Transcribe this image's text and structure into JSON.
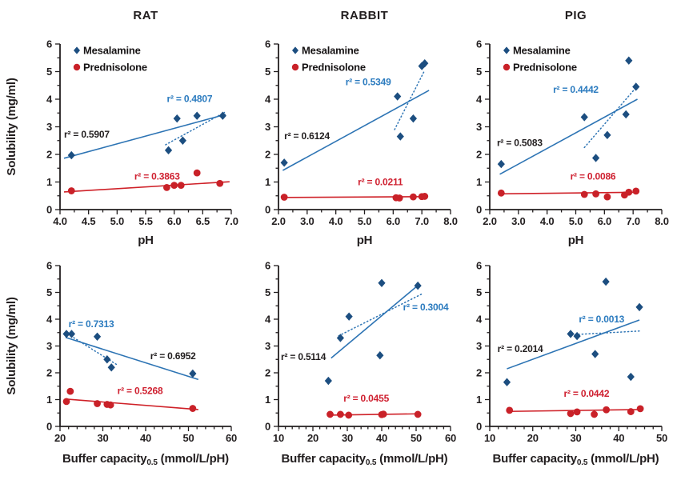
{
  "figure": {
    "ylabel": "Solubility (mg/ml)",
    "legend": [
      {
        "key": "mesalamine",
        "label": "Mesalamine"
      },
      {
        "key": "prednisolone",
        "label": "Prednisolone"
      }
    ]
  },
  "colors": {
    "blue_marker": "#1c4e80",
    "blue_line": "#2d74b4",
    "blue_text": "#2b7bbf",
    "red_marker": "#c92128",
    "red_line": "#cf2128",
    "red_text": "#cf2030",
    "dark": "#221e1f",
    "axis": "#221e1f"
  },
  "chart_data": [
    {
      "id": "rat-ph",
      "type": "scatter",
      "row": 0,
      "col": 0,
      "title": "RAT",
      "xlabel": {
        "pre": "pH",
        "sub": "",
        "post": ""
      },
      "xlim": [
        4.0,
        7.0
      ],
      "xmajor": 0.5,
      "xminor": 0.25,
      "xdecimals": 1,
      "ylim": [
        0,
        6
      ],
      "ymajor": 1,
      "yminor": 0.5,
      "show_ylabel": true,
      "show_legend": true,
      "mesalamine": [
        [
          4.2,
          1.97
        ],
        [
          5.9,
          2.15
        ],
        [
          6.05,
          3.3
        ],
        [
          6.15,
          2.5
        ],
        [
          6.4,
          3.4
        ],
        [
          6.85,
          3.4
        ]
      ],
      "prednisolone": [
        [
          4.2,
          0.68
        ],
        [
          5.87,
          0.8
        ],
        [
          6.0,
          0.88
        ],
        [
          6.12,
          0.88
        ],
        [
          6.4,
          1.33
        ],
        [
          6.8,
          0.95
        ]
      ],
      "lines": [
        {
          "series": "mesalamine",
          "style": "solid",
          "x1": 4.07,
          "y1": 1.86,
          "x2": 6.9,
          "y2": 3.45
        },
        {
          "series": "mesalamine",
          "style": "dotted",
          "x1": 5.85,
          "y1": 2.35,
          "x2": 6.88,
          "y2": 3.52
        },
        {
          "series": "prednisolone",
          "style": "solid",
          "x1": 4.07,
          "y1": 0.64,
          "x2": 6.97,
          "y2": 1.01
        }
      ],
      "annotations": [
        {
          "text": "r² = 0.5907",
          "color": "dark",
          "x": 4.07,
          "y": 2.72,
          "anchor": "start"
        },
        {
          "text": "r² = 0.4807",
          "color": "blue",
          "x": 6.27,
          "y": 4.02,
          "anchor": "middle"
        },
        {
          "text": "r² = 0.3863",
          "color": "red",
          "x": 5.7,
          "y": 1.2,
          "anchor": "middle"
        }
      ]
    },
    {
      "id": "rabbit-ph",
      "type": "scatter",
      "row": 0,
      "col": 1,
      "title": "RABBIT",
      "xlabel": {
        "pre": "pH",
        "sub": "",
        "post": ""
      },
      "xlim": [
        2.0,
        8.0
      ],
      "xmajor": 1.0,
      "xminor": 0.5,
      "xdecimals": 1,
      "ylim": [
        0,
        6
      ],
      "ymajor": 1,
      "yminor": 0.5,
      "show_ylabel": false,
      "show_legend": true,
      "mesalamine": [
        [
          2.2,
          1.7
        ],
        [
          6.15,
          4.1
        ],
        [
          6.25,
          2.65
        ],
        [
          6.7,
          3.3
        ],
        [
          7.0,
          5.2
        ],
        [
          7.1,
          5.3
        ]
      ],
      "prednisolone": [
        [
          2.2,
          0.45
        ],
        [
          6.1,
          0.43
        ],
        [
          6.22,
          0.42
        ],
        [
          6.7,
          0.46
        ],
        [
          7.0,
          0.47
        ],
        [
          7.1,
          0.48
        ]
      ],
      "lines": [
        {
          "series": "mesalamine",
          "style": "solid",
          "x1": 2.15,
          "y1": 1.42,
          "x2": 7.25,
          "y2": 4.32
        },
        {
          "series": "mesalamine",
          "style": "dotted",
          "x1": 6.05,
          "y1": 2.9,
          "x2": 7.1,
          "y2": 5.05
        },
        {
          "series": "prednisolone",
          "style": "solid",
          "x1": 2.2,
          "y1": 0.44,
          "x2": 7.2,
          "y2": 0.47
        }
      ],
      "annotations": [
        {
          "text": "r² = 0.6124",
          "color": "dark",
          "x": 2.2,
          "y": 2.67,
          "anchor": "start"
        },
        {
          "text": "r² = 0.5349",
          "color": "blue",
          "x": 5.13,
          "y": 4.62,
          "anchor": "middle"
        },
        {
          "text": "r² = 0.0211",
          "color": "red",
          "x": 5.55,
          "y": 1.0,
          "anchor": "middle"
        }
      ]
    },
    {
      "id": "pig-ph",
      "type": "scatter",
      "row": 0,
      "col": 2,
      "title": "PIG",
      "xlabel": {
        "pre": "pH",
        "sub": "",
        "post": ""
      },
      "xlim": [
        2.0,
        8.0
      ],
      "xmajor": 1.0,
      "xminor": 0.5,
      "xdecimals": 1,
      "ylim": [
        0,
        6
      ],
      "ymajor": 1,
      "yminor": 0.5,
      "show_ylabel": false,
      "show_legend": true,
      "mesalamine": [
        [
          2.4,
          1.65
        ],
        [
          5.3,
          3.35
        ],
        [
          5.7,
          1.87
        ],
        [
          6.1,
          2.7
        ],
        [
          6.75,
          3.45
        ],
        [
          6.85,
          5.4
        ],
        [
          7.1,
          4.45
        ]
      ],
      "prednisolone": [
        [
          2.4,
          0.6
        ],
        [
          5.3,
          0.55
        ],
        [
          5.7,
          0.57
        ],
        [
          6.1,
          0.46
        ],
        [
          6.7,
          0.53
        ],
        [
          6.85,
          0.63
        ],
        [
          7.1,
          0.67
        ]
      ],
      "lines": [
        {
          "series": "mesalamine",
          "style": "solid",
          "x1": 2.35,
          "y1": 1.28,
          "x2": 7.15,
          "y2": 4.0
        },
        {
          "series": "mesalamine",
          "style": "dotted",
          "x1": 5.3,
          "y1": 2.25,
          "x2": 7.1,
          "y2": 4.42
        },
        {
          "series": "prednisolone",
          "style": "solid",
          "x1": 2.4,
          "y1": 0.57,
          "x2": 7.2,
          "y2": 0.63
        }
      ],
      "annotations": [
        {
          "text": "r² = 0.5083",
          "color": "dark",
          "x": 2.25,
          "y": 2.42,
          "anchor": "start"
        },
        {
          "text": "r² = 0.4442",
          "color": "blue",
          "x": 5.0,
          "y": 4.35,
          "anchor": "middle"
        },
        {
          "text": "r² = 0.0086",
          "color": "red",
          "x": 5.6,
          "y": 1.2,
          "anchor": "middle"
        }
      ]
    },
    {
      "id": "rat-bc",
      "type": "scatter",
      "row": 1,
      "col": 0,
      "title": null,
      "xlabel": {
        "pre": "Buffer capacity",
        "sub": "0.5",
        "post": " (mmol/L/pH)"
      },
      "xlim": [
        20,
        60
      ],
      "xmajor": 10,
      "xminor": 2,
      "xdecimals": 0,
      "ylim": [
        0,
        6
      ],
      "ymajor": 1,
      "yminor": 0.5,
      "show_ylabel": true,
      "show_legend": false,
      "mesalamine": [
        [
          21.5,
          3.45
        ],
        [
          22.7,
          3.45
        ],
        [
          28.7,
          3.35
        ],
        [
          31,
          2.5
        ],
        [
          32,
          2.2
        ],
        [
          51,
          1.97
        ]
      ],
      "prednisolone": [
        [
          21.5,
          0.93
        ],
        [
          22.4,
          1.31
        ],
        [
          28.7,
          0.85
        ],
        [
          31,
          0.82
        ],
        [
          31.8,
          0.8
        ],
        [
          51,
          0.67
        ]
      ],
      "lines": [
        {
          "series": "mesalamine",
          "style": "solid",
          "x1": 21.3,
          "y1": 3.32,
          "x2": 52.3,
          "y2": 1.75
        },
        {
          "series": "mesalamine",
          "style": "dotted",
          "x1": 21.8,
          "y1": 3.45,
          "x2": 33.3,
          "y2": 2.3
        },
        {
          "series": "prednisolone",
          "style": "solid",
          "x1": 21.3,
          "y1": 1.02,
          "x2": 52.3,
          "y2": 0.63
        }
      ],
      "annotations": [
        {
          "text": "r² = 0.7313",
          "color": "blue",
          "x": 27.3,
          "y": 3.82,
          "anchor": "middle"
        },
        {
          "text": "r² = 0.6952",
          "color": "dark",
          "x": 46.4,
          "y": 2.62,
          "anchor": "middle"
        },
        {
          "text": "r² = 0.5268",
          "color": "red",
          "x": 38.7,
          "y": 1.33,
          "anchor": "middle"
        }
      ]
    },
    {
      "id": "rabbit-bc",
      "type": "scatter",
      "row": 1,
      "col": 1,
      "title": null,
      "xlabel": {
        "pre": "Buffer capacity",
        "sub": "0.5",
        "post": " (mmol/L/pH)"
      },
      "xlim": [
        10,
        60
      ],
      "xmajor": 10,
      "xminor": 2,
      "xdecimals": 0,
      "ylim": [
        0,
        6
      ],
      "ymajor": 1,
      "yminor": 0.5,
      "show_ylabel": false,
      "show_legend": false,
      "mesalamine": [
        [
          24.5,
          1.7
        ],
        [
          28,
          3.3
        ],
        [
          30.5,
          4.1
        ],
        [
          40,
          5.35
        ],
        [
          39.5,
          2.65
        ],
        [
          50.5,
          5.25
        ]
      ],
      "prednisolone": [
        [
          25,
          0.45
        ],
        [
          28,
          0.45
        ],
        [
          30.4,
          0.42
        ],
        [
          40,
          0.44
        ],
        [
          40.5,
          0.46
        ],
        [
          50.5,
          0.45
        ]
      ],
      "lines": [
        {
          "series": "mesalamine",
          "style": "solid",
          "x1": 25.3,
          "y1": 2.55,
          "x2": 50.7,
          "y2": 5.28
        },
        {
          "series": "mesalamine",
          "style": "dotted",
          "x1": 27.5,
          "y1": 3.38,
          "x2": 51.8,
          "y2": 4.95
        },
        {
          "series": "prednisolone",
          "style": "solid",
          "x1": 24.8,
          "y1": 0.42,
          "x2": 51,
          "y2": 0.47
        }
      ],
      "annotations": [
        {
          "text": "r² = 0.5114",
          "color": "dark",
          "x": 10.7,
          "y": 2.6,
          "anchor": "start"
        },
        {
          "text": "r² = 0.3004",
          "color": "blue",
          "x": 52.8,
          "y": 4.45,
          "anchor": "middle"
        },
        {
          "text": "r² = 0.0455",
          "color": "red",
          "x": 35.5,
          "y": 1.05,
          "anchor": "middle"
        }
      ]
    },
    {
      "id": "pig-bc",
      "type": "scatter",
      "row": 1,
      "col": 2,
      "title": null,
      "xlabel": {
        "pre": "Buffer capacity",
        "sub": "0.5",
        "post": " (mmol/L/pH)"
      },
      "xlim": [
        10,
        50
      ],
      "xmajor": 10,
      "xminor": 2,
      "xdecimals": 0,
      "ylim": [
        0,
        6
      ],
      "ymajor": 1,
      "yminor": 0.5,
      "show_ylabel": false,
      "show_legend": false,
      "mesalamine": [
        [
          14,
          1.65
        ],
        [
          28.8,
          3.45
        ],
        [
          30.3,
          3.37
        ],
        [
          34.5,
          2.7
        ],
        [
          37,
          5.4
        ],
        [
          42.8,
          1.85
        ],
        [
          44.8,
          4.45
        ]
      ],
      "prednisolone": [
        [
          14.6,
          0.6
        ],
        [
          28.8,
          0.48
        ],
        [
          30.3,
          0.54
        ],
        [
          34.3,
          0.45
        ],
        [
          37.1,
          0.62
        ],
        [
          42.8,
          0.55
        ],
        [
          45,
          0.66
        ]
      ],
      "lines": [
        {
          "series": "mesalamine",
          "style": "solid",
          "x1": 14,
          "y1": 2.15,
          "x2": 44.8,
          "y2": 3.97
        },
        {
          "series": "mesalamine",
          "style": "dotted",
          "x1": 29,
          "y1": 3.42,
          "x2": 45,
          "y2": 3.56
        },
        {
          "series": "prednisolone",
          "style": "solid",
          "x1": 14.5,
          "y1": 0.56,
          "x2": 45,
          "y2": 0.63
        }
      ],
      "annotations": [
        {
          "text": "r² = 0.2014",
          "color": "dark",
          "x": 11.8,
          "y": 2.9,
          "anchor": "start"
        },
        {
          "text": "r² = 0.0013",
          "color": "blue",
          "x": 36,
          "y": 4.0,
          "anchor": "middle"
        },
        {
          "text": "r² = 0.0442",
          "color": "red",
          "x": 32.5,
          "y": 1.22,
          "anchor": "middle"
        }
      ]
    }
  ]
}
